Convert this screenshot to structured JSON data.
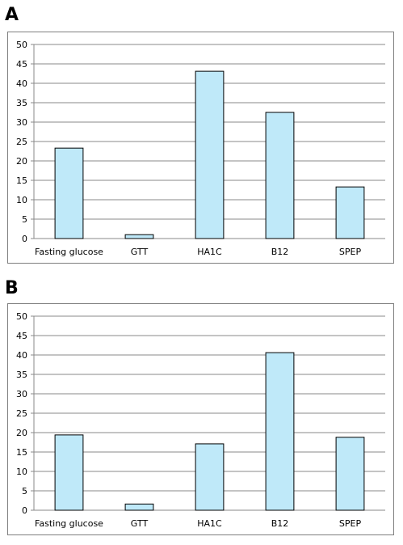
{
  "chart_data": [
    {
      "panel": "A",
      "type": "bar",
      "categories": [
        "Fasting glucose",
        "GTT",
        "HA1C",
        "B12",
        "SPEP"
      ],
      "values": [
        23.3,
        1.0,
        43.1,
        32.5,
        13.3
      ],
      "ylim": [
        0,
        50
      ],
      "yticks": [
        0,
        5,
        10,
        15,
        20,
        25,
        30,
        35,
        40,
        45,
        50
      ],
      "grid": true,
      "bar_color": "#BFE9F9",
      "bar_edge": "#000000"
    },
    {
      "panel": "B",
      "type": "bar",
      "categories": [
        "Fasting glucose",
        "GTT",
        "HA1C",
        "B12",
        "SPEP"
      ],
      "values": [
        19.4,
        1.6,
        17.1,
        40.6,
        18.8
      ],
      "ylim": [
        0,
        50
      ],
      "yticks": [
        0,
        5,
        10,
        15,
        20,
        25,
        30,
        35,
        40,
        45,
        50
      ],
      "grid": true,
      "bar_color": "#BFE9F9",
      "bar_edge": "#000000"
    }
  ]
}
